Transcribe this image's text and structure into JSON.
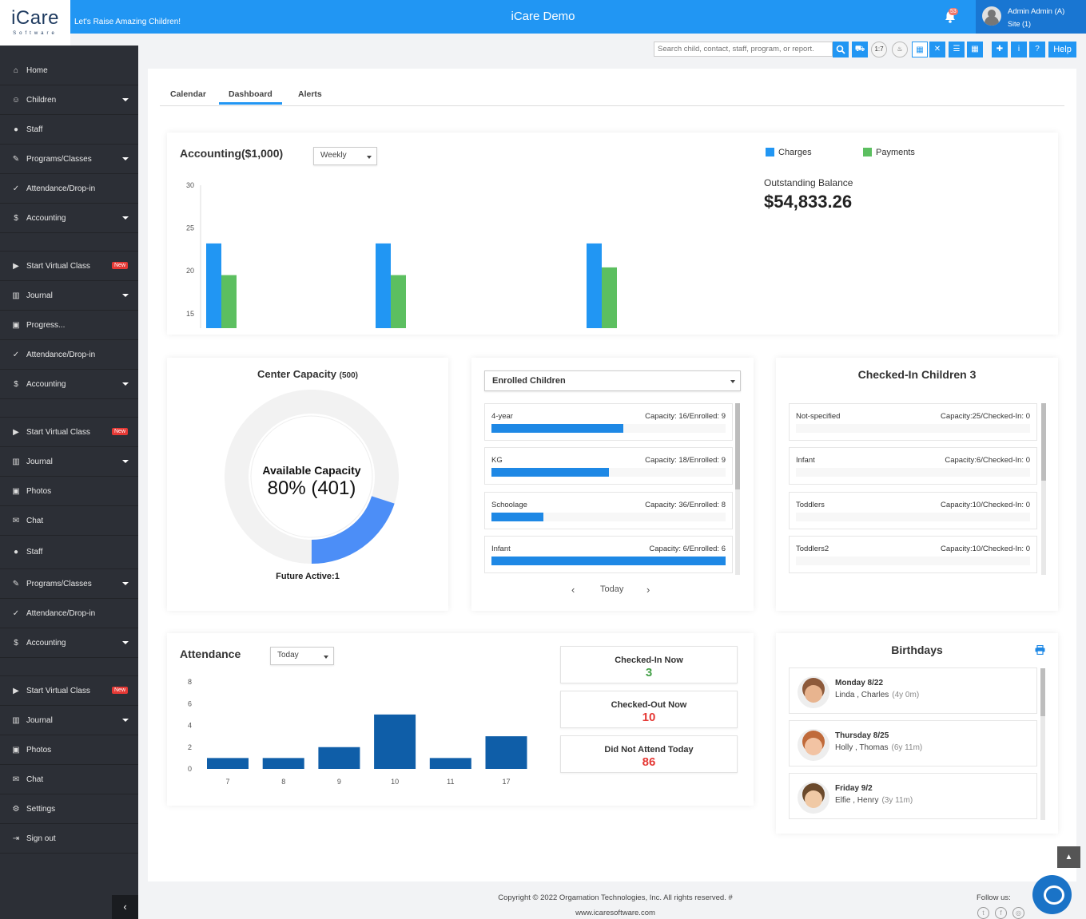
{
  "header": {
    "logo_main": "iCare",
    "logo_sub": "Software",
    "tagline": "Let's Raise Amazing Children!",
    "app_title": "iCare Demo",
    "notification_count": "53",
    "user_name": "Admin Admin (A)",
    "site": "Site (1)"
  },
  "sidebar": {
    "items": [
      {
        "label": "Home",
        "icon": "home-icon",
        "glyph": "⌂",
        "caret": false
      },
      {
        "label": "Children",
        "icon": "child-icon",
        "glyph": "☺",
        "caret": true
      },
      {
        "label": "Staff",
        "icon": "user-icon",
        "glyph": "●",
        "caret": false
      },
      {
        "label": "Programs/Classes",
        "icon": "pencil-icon",
        "glyph": "✎",
        "caret": true
      },
      {
        "label": "Attendance/Drop-in",
        "icon": "check-circle-icon",
        "glyph": "✓",
        "caret": false
      },
      {
        "label": "Accounting",
        "icon": "dollar-icon",
        "glyph": "$",
        "caret": true
      },
      {
        "gap": true
      },
      {
        "label": "Start Virtual Class",
        "icon": "video-icon",
        "glyph": "▶",
        "caret": false,
        "badge": "New"
      },
      {
        "label": "Journal",
        "icon": "bar-chart-icon",
        "glyph": "▥",
        "caret": true
      },
      {
        "label": "Progress...",
        "icon": "image-icon",
        "glyph": "▣",
        "caret": false
      },
      {
        "label": "Attendance/Drop-in",
        "icon": "check-circle-icon",
        "glyph": "✓",
        "caret": false
      },
      {
        "label": "Accounting",
        "icon": "dollar-icon",
        "glyph": "$",
        "caret": true
      },
      {
        "gap": true
      },
      {
        "label": "Start Virtual Class",
        "icon": "video-icon",
        "glyph": "▶",
        "caret": false,
        "badge": "New"
      },
      {
        "label": "Journal",
        "icon": "bar-chart-icon",
        "glyph": "▥",
        "caret": true
      },
      {
        "label": "Photos",
        "icon": "image-icon",
        "glyph": "▣",
        "caret": false
      },
      {
        "label": "Chat",
        "icon": "chat-icon",
        "glyph": "✉",
        "caret": false
      },
      {
        "label": "Staff",
        "icon": "user-icon",
        "glyph": "●",
        "caret": false,
        "tall": true
      },
      {
        "label": "Programs/Classes",
        "icon": "pencil-icon",
        "glyph": "✎",
        "caret": true
      },
      {
        "label": "Attendance/Drop-in",
        "icon": "check-circle-icon",
        "glyph": "✓",
        "caret": false
      },
      {
        "label": "Accounting",
        "icon": "dollar-icon",
        "glyph": "$",
        "caret": true
      },
      {
        "gap": true
      },
      {
        "label": "Start Virtual Class",
        "icon": "video-icon",
        "glyph": "▶",
        "caret": false,
        "badge": "New"
      },
      {
        "label": "Journal",
        "icon": "bar-chart-icon",
        "glyph": "▥",
        "caret": true
      },
      {
        "label": "Photos",
        "icon": "image-icon",
        "glyph": "▣",
        "caret": false
      },
      {
        "label": "Chat",
        "icon": "chat-icon",
        "glyph": "✉",
        "caret": false
      },
      {
        "label": "Settings",
        "icon": "gear-icon",
        "glyph": "⚙",
        "caret": false
      },
      {
        "label": "Sign out",
        "icon": "sign-out-icon",
        "glyph": "⇥",
        "caret": false
      }
    ],
    "collapse_glyph": "‹"
  },
  "toolbar": {
    "search_placeholder": "Search child, contact, staff, program, or report.",
    "ratio": "1:7",
    "help_label": "Help"
  },
  "tabs": [
    "Calendar",
    "Dashboard",
    "Alerts"
  ],
  "accounting": {
    "title": "Accounting($1,000)",
    "period": "Weekly",
    "legend": [
      "Charges",
      "Payments"
    ],
    "outstanding_label": "Outstanding Balance",
    "outstanding_value": "$54,833.26"
  },
  "colors": {
    "charges": "#2196f3",
    "payments": "#5cbf60",
    "primary": "#2196f3",
    "attendance_bar": "#0f5ea8",
    "checked_in": "#43a047",
    "alert": "#e53935"
  },
  "capacity": {
    "title": "Center Capacity",
    "total": "(500)",
    "center_label": "Available Capacity",
    "center_value": "80% (401)",
    "used_fraction": 0.2,
    "future_active": "Future Active:1"
  },
  "enrolled": {
    "select_value": "Enrolled Children",
    "rows": [
      {
        "name": "4-year",
        "capacity": "Capacity: 16/Enrolled: 9",
        "fraction": 0.5625
      },
      {
        "name": "KG",
        "capacity": "Capacity: 18/Enrolled: 9",
        "fraction": 0.5
      },
      {
        "name": "Schoolage",
        "capacity": "Capacity: 36/Enrolled: 8",
        "fraction": 0.222
      },
      {
        "name": "Infant",
        "capacity": "Capacity: 6/Enrolled: 6",
        "fraction": 1.0
      }
    ],
    "date_label": "Today"
  },
  "checked_in": {
    "title": "Checked-In Children 3",
    "rows": [
      {
        "name": "Not-specified",
        "capacity": "Capacity:25/Checked-In: 0"
      },
      {
        "name": "Infant",
        "capacity": "Capacity:6/Checked-In: 0"
      },
      {
        "name": "Toddlers",
        "capacity": "Capacity:10/Checked-In: 0"
      },
      {
        "name": "Toddlers2",
        "capacity": "Capacity:10/Checked-In: 0"
      }
    ]
  },
  "attendance": {
    "title": "Attendance",
    "period": "Today",
    "stats": [
      {
        "label": "Checked-In Now",
        "value": "3",
        "color": "#43a047"
      },
      {
        "label": "Checked-Out Now",
        "value": "10",
        "color": "#e53935"
      },
      {
        "label": "Did Not Attend Today",
        "value": "86",
        "color": "#e53935"
      }
    ]
  },
  "birthdays": {
    "title": "Birthdays",
    "rows": [
      {
        "day": "Monday 8/22",
        "names": "Linda , Charles",
        "age": "(4y 0m)"
      },
      {
        "day": "Thursday 8/25",
        "names": "Holly , Thomas",
        "age": "(6y 11m)"
      },
      {
        "day": "Friday 9/2",
        "names": "Elfie , Henry",
        "age": "(3y 11m)"
      }
    ]
  },
  "footer": {
    "copyright": "Copyright © 2022 Orgamation Technologies, Inc. All rights reserved. #",
    "website": "www.icaresoftware.com",
    "follow": "Follow us:"
  },
  "chart_data": [
    {
      "type": "bar",
      "title": "Accounting($1,000)",
      "categories": [
        "",
        "",
        ""
      ],
      "series": [
        {
          "name": "Charges",
          "values": [
            23.2,
            23.2,
            23.2
          ]
        },
        {
          "name": "Payments",
          "values": [
            19.5,
            19.5,
            20.4
          ]
        }
      ],
      "yticks": [
        15,
        20,
        25,
        30
      ],
      "ylim": [
        13.3,
        30
      ],
      "xlabel": "",
      "ylabel": ""
    },
    {
      "type": "bar",
      "title": "Attendance",
      "categories": [
        "7",
        "8",
        "9",
        "10",
        "11",
        "17"
      ],
      "values": [
        1,
        1,
        2,
        5,
        1,
        3
      ],
      "yticks": [
        0,
        2,
        4,
        6,
        8
      ],
      "ylim": [
        0,
        8
      ],
      "xlabel": "",
      "ylabel": ""
    }
  ]
}
